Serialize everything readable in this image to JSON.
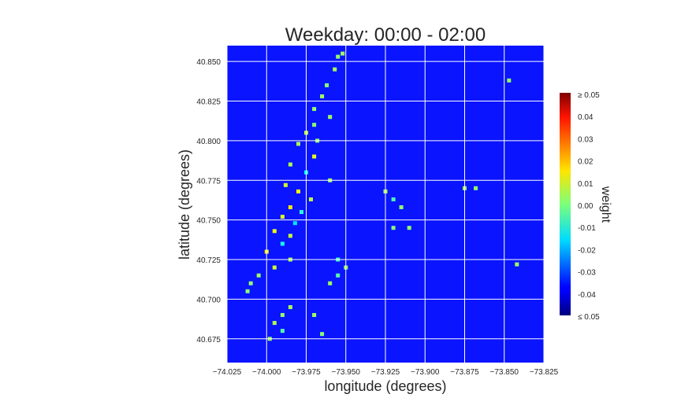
{
  "chart_data": {
    "type": "heatmap",
    "title": "Weekday: 00:00 - 02:00",
    "xlabel": "longitude (degrees)",
    "ylabel": "latitude (degrees)",
    "xlim": [
      -74.025,
      -73.825
    ],
    "ylim": [
      40.66,
      40.86
    ],
    "x_ticks": [
      -74.025,
      -74.0,
      -73.975,
      -73.95,
      -73.925,
      -73.9,
      -73.875,
      -73.85,
      -73.825
    ],
    "x_tick_labels": [
      "−74.025",
      "−74.000",
      "−73.975",
      "−73.950",
      "−73.925",
      "−73.900",
      "−73.875",
      "−73.850",
      "−73.825"
    ],
    "y_ticks": [
      40.675,
      40.7,
      40.725,
      40.75,
      40.775,
      40.8,
      40.825,
      40.85
    ],
    "y_tick_labels": [
      "40.675",
      "40.700",
      "40.725",
      "40.750",
      "40.775",
      "40.800",
      "40.825",
      "40.850"
    ],
    "grid": true,
    "background_color": "#0a14ff",
    "colormap": "jet",
    "colorbar": {
      "label": "weight",
      "range": [
        -0.05,
        0.05
      ],
      "ticks": [
        0.05,
        0.04,
        0.03,
        0.02,
        0.01,
        0.0,
        -0.01,
        -0.02,
        -0.03,
        -0.04,
        -0.05
      ],
      "tick_labels": [
        "≥ 0.05",
        "0.04",
        "0.03",
        "0.02",
        "0.01",
        "0.00",
        "-0.01",
        "-0.02",
        "-0.03",
        "-0.04",
        "≤ 0.05"
      ]
    },
    "cells": [
      {
        "lat": 40.855,
        "lon": -73.952,
        "w": 0.003
      },
      {
        "lat": 40.853,
        "lon": -73.955,
        "w": 0.002
      },
      {
        "lat": 40.845,
        "lon": -73.957,
        "w": 0.004
      },
      {
        "lat": 40.835,
        "lon": -73.962,
        "w": 0.001
      },
      {
        "lat": 40.828,
        "lon": -73.965,
        "w": 0.003
      },
      {
        "lat": 40.82,
        "lon": -73.97,
        "w": 0.002
      },
      {
        "lat": 40.815,
        "lon": -73.96,
        "w": 0.003
      },
      {
        "lat": 40.81,
        "lon": -73.97,
        "w": 0.001
      },
      {
        "lat": 40.805,
        "lon": -73.975,
        "w": 0.006
      },
      {
        "lat": 40.8,
        "lon": -73.968,
        "w": 0.002
      },
      {
        "lat": 40.798,
        "lon": -73.98,
        "w": 0.004
      },
      {
        "lat": 40.79,
        "lon": -73.97,
        "w": 0.01
      },
      {
        "lat": 40.785,
        "lon": -73.985,
        "w": 0.005
      },
      {
        "lat": 40.78,
        "lon": -73.975,
        "w": -0.012
      },
      {
        "lat": 40.775,
        "lon": -73.96,
        "w": 0.003
      },
      {
        "lat": 40.772,
        "lon": -73.988,
        "w": 0.008
      },
      {
        "lat": 40.768,
        "lon": -73.98,
        "w": 0.012
      },
      {
        "lat": 40.763,
        "lon": -73.972,
        "w": 0.006
      },
      {
        "lat": 40.758,
        "lon": -73.985,
        "w": 0.015
      },
      {
        "lat": 40.755,
        "lon": -73.978,
        "w": -0.008
      },
      {
        "lat": 40.752,
        "lon": -73.99,
        "w": 0.009
      },
      {
        "lat": 40.748,
        "lon": -73.982,
        "w": -0.015
      },
      {
        "lat": 40.743,
        "lon": -73.995,
        "w": 0.011
      },
      {
        "lat": 40.74,
        "lon": -73.985,
        "w": 0.007
      },
      {
        "lat": 40.735,
        "lon": -73.99,
        "w": -0.01
      },
      {
        "lat": 40.73,
        "lon": -74.0,
        "w": 0.013
      },
      {
        "lat": 40.725,
        "lon": -73.985,
        "w": 0.004
      },
      {
        "lat": 40.72,
        "lon": -73.995,
        "w": 0.008
      },
      {
        "lat": 40.715,
        "lon": -74.005,
        "w": 0.003
      },
      {
        "lat": 40.71,
        "lon": -74.01,
        "w": 0.002
      },
      {
        "lat": 40.705,
        "lon": -74.012,
        "w": 0.001
      },
      {
        "lat": 40.725,
        "lon": -73.955,
        "w": -0.006
      },
      {
        "lat": 40.72,
        "lon": -73.95,
        "w": 0.002
      },
      {
        "lat": 40.715,
        "lon": -73.955,
        "w": -0.004
      },
      {
        "lat": 40.71,
        "lon": -73.96,
        "w": 0.003
      },
      {
        "lat": 40.768,
        "lon": -73.925,
        "w": 0.004
      },
      {
        "lat": 40.763,
        "lon": -73.92,
        "w": -0.005
      },
      {
        "lat": 40.758,
        "lon": -73.915,
        "w": 0.002
      },
      {
        "lat": 40.745,
        "lon": -73.92,
        "w": 0.001
      },
      {
        "lat": 40.745,
        "lon": -73.91,
        "w": 0.002
      },
      {
        "lat": 40.77,
        "lon": -73.875,
        "w": 0.003
      },
      {
        "lat": 40.77,
        "lon": -73.868,
        "w": 0.002
      },
      {
        "lat": 40.838,
        "lon": -73.847,
        "w": 0.002
      },
      {
        "lat": 40.722,
        "lon": -73.842,
        "w": 0.003
      },
      {
        "lat": 40.695,
        "lon": -73.985,
        "w": 0.004
      },
      {
        "lat": 40.69,
        "lon": -73.99,
        "w": 0.002
      },
      {
        "lat": 40.685,
        "lon": -73.995,
        "w": 0.005
      },
      {
        "lat": 40.68,
        "lon": -73.99,
        "w": -0.004
      },
      {
        "lat": 40.675,
        "lon": -73.998,
        "w": 0.002
      },
      {
        "lat": 40.69,
        "lon": -73.97,
        "w": 0.003
      },
      {
        "lat": 40.678,
        "lon": -73.965,
        "w": 0.001
      }
    ]
  }
}
